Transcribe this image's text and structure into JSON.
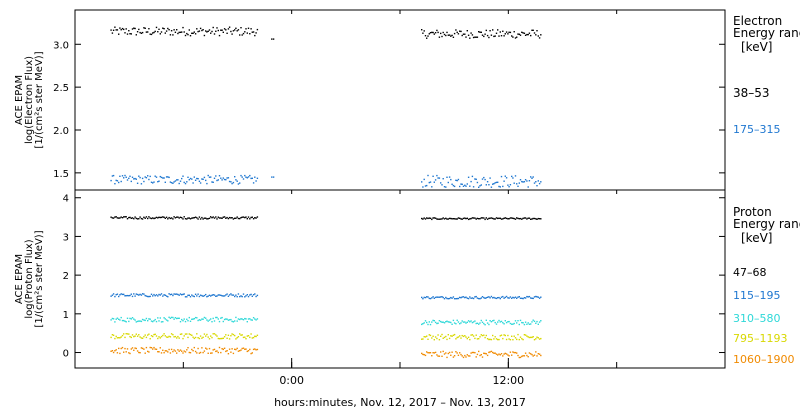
{
  "chart_data": [
    {
      "type": "scatter",
      "panel": "electron",
      "ylabel_lines": [
        "ACE EPAM",
        "log(Electron Flux)",
        "[1/(cm²s ster MeV)]"
      ],
      "legend_title_lines": [
        "Electron",
        "Energy ranges",
        "[keV]"
      ],
      "ylim": [
        1.3,
        3.4
      ],
      "y_ticks": [
        1.5,
        2.0,
        2.5,
        3.0
      ],
      "y_tick_labels": [
        "1.5",
        "2.0",
        "2.5",
        "3.0"
      ],
      "series": [
        {
          "name": "38–53",
          "color": "#000000",
          "segments": [
            {
              "x": [
                -10.0,
                -1.9
              ],
              "mean": 3.15,
              "spread": 0.05
            },
            {
              "x": [
                -1.1,
                -1.0
              ],
              "mean": 3.06,
              "spread": 0.0
            },
            {
              "x": [
                7.2,
                13.8
              ],
              "mean": 3.12,
              "spread": 0.05
            }
          ]
        },
        {
          "name": "175–315",
          "color": "#1f77d0",
          "segments": [
            {
              "x": [
                -10.0,
                -1.9
              ],
              "mean": 1.42,
              "spread": 0.05
            },
            {
              "x": [
                -1.1,
                -1.0
              ],
              "mean": 1.45,
              "spread": 0.0
            },
            {
              "x": [
                7.2,
                13.8
              ],
              "mean": 1.4,
              "spread": 0.07
            }
          ]
        }
      ]
    },
    {
      "type": "scatter",
      "panel": "proton",
      "ylabel_lines": [
        "ACE EPAM",
        "log(Proton Flux)",
        "[1/(cm²s ster MeV)]"
      ],
      "legend_title_lines": [
        "Proton",
        "Energy ranges",
        "[keV]"
      ],
      "ylim": [
        -0.4,
        4.2
      ],
      "y_ticks": [
        0,
        1,
        2,
        3,
        4
      ],
      "y_tick_labels": [
        "0",
        "1",
        "2",
        "3",
        "4"
      ],
      "series": [
        {
          "name": "47–68",
          "color": "#000000",
          "segments": [
            {
              "x": [
                -10.0,
                -1.9
              ],
              "mean": 3.48,
              "spread": 0.03
            },
            {
              "x": [
                7.2,
                13.8
              ],
              "mean": 3.46,
              "spread": 0.02
            }
          ]
        },
        {
          "name": "115–195",
          "color": "#1f77d0",
          "segments": [
            {
              "x": [
                -10.0,
                -1.9
              ],
              "mean": 1.48,
              "spread": 0.04
            },
            {
              "x": [
                7.2,
                13.8
              ],
              "mean": 1.42,
              "spread": 0.03
            }
          ]
        },
        {
          "name": "310–580",
          "color": "#2ed8d8",
          "segments": [
            {
              "x": [
                -10.0,
                -1.9
              ],
              "mean": 0.85,
              "spread": 0.06
            },
            {
              "x": [
                7.2,
                13.8
              ],
              "mean": 0.78,
              "spread": 0.06
            }
          ]
        },
        {
          "name": "795–1193",
          "color": "#d8d800",
          "segments": [
            {
              "x": [
                -10.0,
                -1.9
              ],
              "mean": 0.42,
              "spread": 0.07
            },
            {
              "x": [
                7.2,
                13.8
              ],
              "mean": 0.4,
              "spread": 0.07
            }
          ]
        },
        {
          "name": "1060–1900",
          "color": "#f08a00",
          "segments": [
            {
              "x": [
                -10.0,
                -1.9
              ],
              "mean": 0.05,
              "spread": 0.08
            },
            {
              "x": [
                7.2,
                13.8
              ],
              "mean": -0.05,
              "spread": 0.08
            }
          ]
        }
      ]
    }
  ],
  "x_axis": {
    "range_hours": [
      -12,
      24
    ],
    "ticks": [
      {
        "hour": 0,
        "label": "0:00"
      },
      {
        "hour": 12,
        "label": "12:00"
      }
    ],
    "label": "hours:minutes, Nov. 12, 2017 – Nov. 13, 2017"
  }
}
